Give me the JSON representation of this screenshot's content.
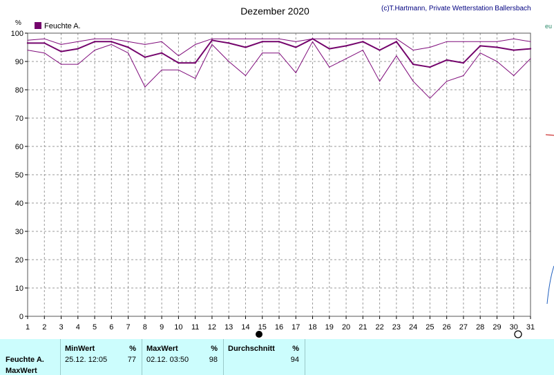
{
  "chart_data": {
    "type": "line",
    "title": "Dezember 2020",
    "credit": "(c)T.Hartmann, Private Wetterstation Ballersbach",
    "ylabel": "%",
    "legend": "Feuchte A.",
    "legend_position": "top-left",
    "ylim": [
      0,
      100
    ],
    "yticks": [
      0,
      10,
      20,
      30,
      40,
      50,
      60,
      70,
      80,
      90,
      100
    ],
    "x": [
      1,
      2,
      3,
      4,
      5,
      6,
      7,
      8,
      9,
      10,
      11,
      12,
      13,
      14,
      15,
      16,
      17,
      18,
      19,
      20,
      21,
      22,
      23,
      24,
      25,
      26,
      27,
      28,
      29,
      30,
      31
    ],
    "grid": true,
    "series": [
      {
        "name": "Feuchte A.",
        "role": "mean",
        "values": [
          96.5,
          96.5,
          93.5,
          94.5,
          97,
          97,
          95,
          91.5,
          93,
          89.5,
          89.5,
          97.5,
          96.5,
          95,
          97,
          97,
          95,
          98,
          94.5,
          95.5,
          97,
          94,
          97,
          89,
          88,
          90.5,
          89.5,
          95.5,
          95,
          94,
          94.5
        ]
      },
      {
        "role": "max",
        "values": [
          97.5,
          98,
          96,
          97,
          98,
          98,
          97,
          96,
          97,
          92,
          96,
          98,
          98,
          98,
          98,
          98,
          97,
          98,
          98,
          98,
          98,
          98,
          98,
          94,
          95,
          97,
          97,
          97,
          97,
          98,
          97
        ]
      },
      {
        "role": "min",
        "values": [
          94,
          93,
          89,
          89,
          94,
          96,
          93,
          81,
          87,
          87,
          84,
          96,
          90,
          85,
          93,
          93,
          86,
          97,
          88,
          91,
          94,
          83,
          92,
          83,
          77,
          83,
          85,
          93,
          90,
          85,
          91
        ]
      }
    ],
    "colors": {
      "mean": "#74046c",
      "minmax": "#7e0a7a",
      "grid": "#999999",
      "frame": "#555555"
    }
  },
  "stats": {
    "row_label_1": "Feuchte A.",
    "row_label_2": "MaxWert",
    "min": {
      "label": "MinWert",
      "unit": "%",
      "datetime": "25.12.  12:05",
      "value": "77"
    },
    "max": {
      "label": "MaxWert",
      "unit": "%",
      "datetime": "02.12.  03:50",
      "value": "98"
    },
    "avg": {
      "label": "Durchschnitt",
      "unit": "%",
      "value": "94"
    },
    "background": "#ccfdfd"
  }
}
